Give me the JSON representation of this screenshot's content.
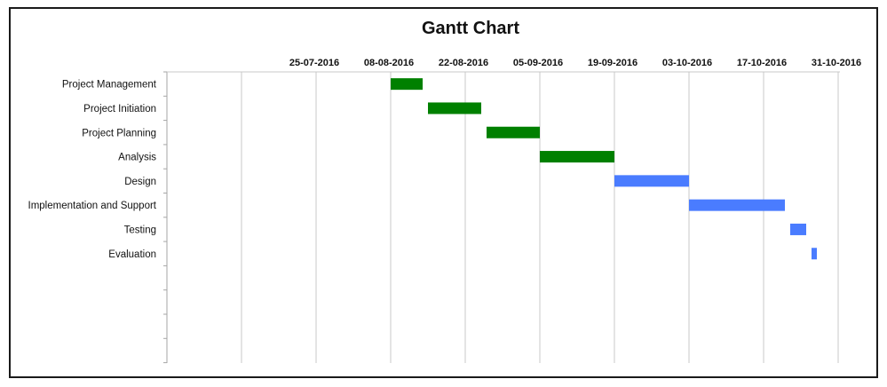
{
  "chart_data": {
    "type": "gantt",
    "title": "Gantt Chart",
    "x_axis": {
      "ticks": [
        "25-07-2016",
        "08-08-2016",
        "22-08-2016",
        "05-09-2016",
        "19-09-2016",
        "03-10-2016",
        "17-10-2016",
        "31-10-2016"
      ],
      "tick_interval_days": 14
    },
    "tasks": [
      {
        "name": "Project Management",
        "start": "2016-08-08",
        "end": "2016-08-14",
        "color": "#008000"
      },
      {
        "name": "Project Initiation",
        "start": "2016-08-15",
        "end": "2016-08-25",
        "color": "#008000"
      },
      {
        "name": "Project Planning",
        "start": "2016-08-26",
        "end": "2016-09-05",
        "color": "#008000"
      },
      {
        "name": "Analysis",
        "start": "2016-09-05",
        "end": "2016-09-19",
        "color": "#008000"
      },
      {
        "name": "Design",
        "start": "2016-09-19",
        "end": "2016-10-03",
        "color": "#4A7CFF"
      },
      {
        "name": "Implementation and Support",
        "start": "2016-10-03",
        "end": "2016-10-21",
        "color": "#4A7CFF"
      },
      {
        "name": "Testing",
        "start": "2016-10-22",
        "end": "2016-10-25",
        "color": "#4A7CFF"
      },
      {
        "name": "Evaluation",
        "start": "2016-10-26",
        "end": "2016-10-27",
        "color": "#4A7CFF"
      }
    ],
    "grid": true,
    "legend": "none"
  }
}
